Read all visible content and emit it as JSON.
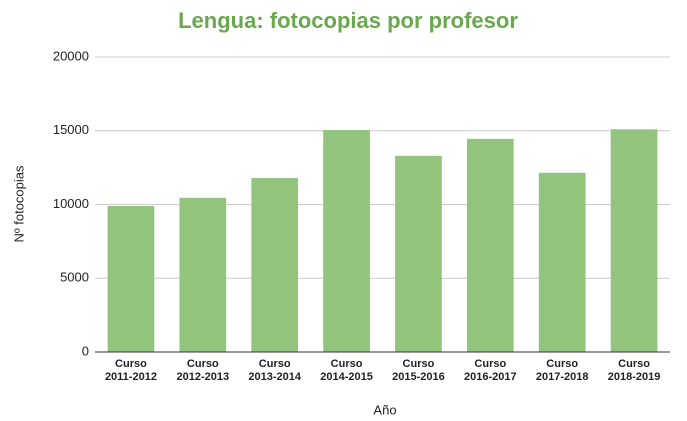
{
  "chart_data": {
    "type": "bar",
    "title": "Lengua: fotocopias por profesor",
    "xlabel": "Año",
    "ylabel": "Nº fotocopias",
    "categories": [
      "Curso 2011-2012",
      "Curso 2012-2013",
      "Curso 2013-2014",
      "Curso 2014-2015",
      "Curso 2015-2016",
      "Curso 2016-2017",
      "Curso 2017-2018",
      "Curso 2018-2019"
    ],
    "values": [
      9900,
      10450,
      11800,
      15050,
      13300,
      14450,
      12150,
      15100
    ],
    "color": "#93c47d",
    "ylim": [
      0,
      20000
    ],
    "yticks": [
      0,
      5000,
      10000,
      15000,
      20000
    ],
    "grid": true
  }
}
